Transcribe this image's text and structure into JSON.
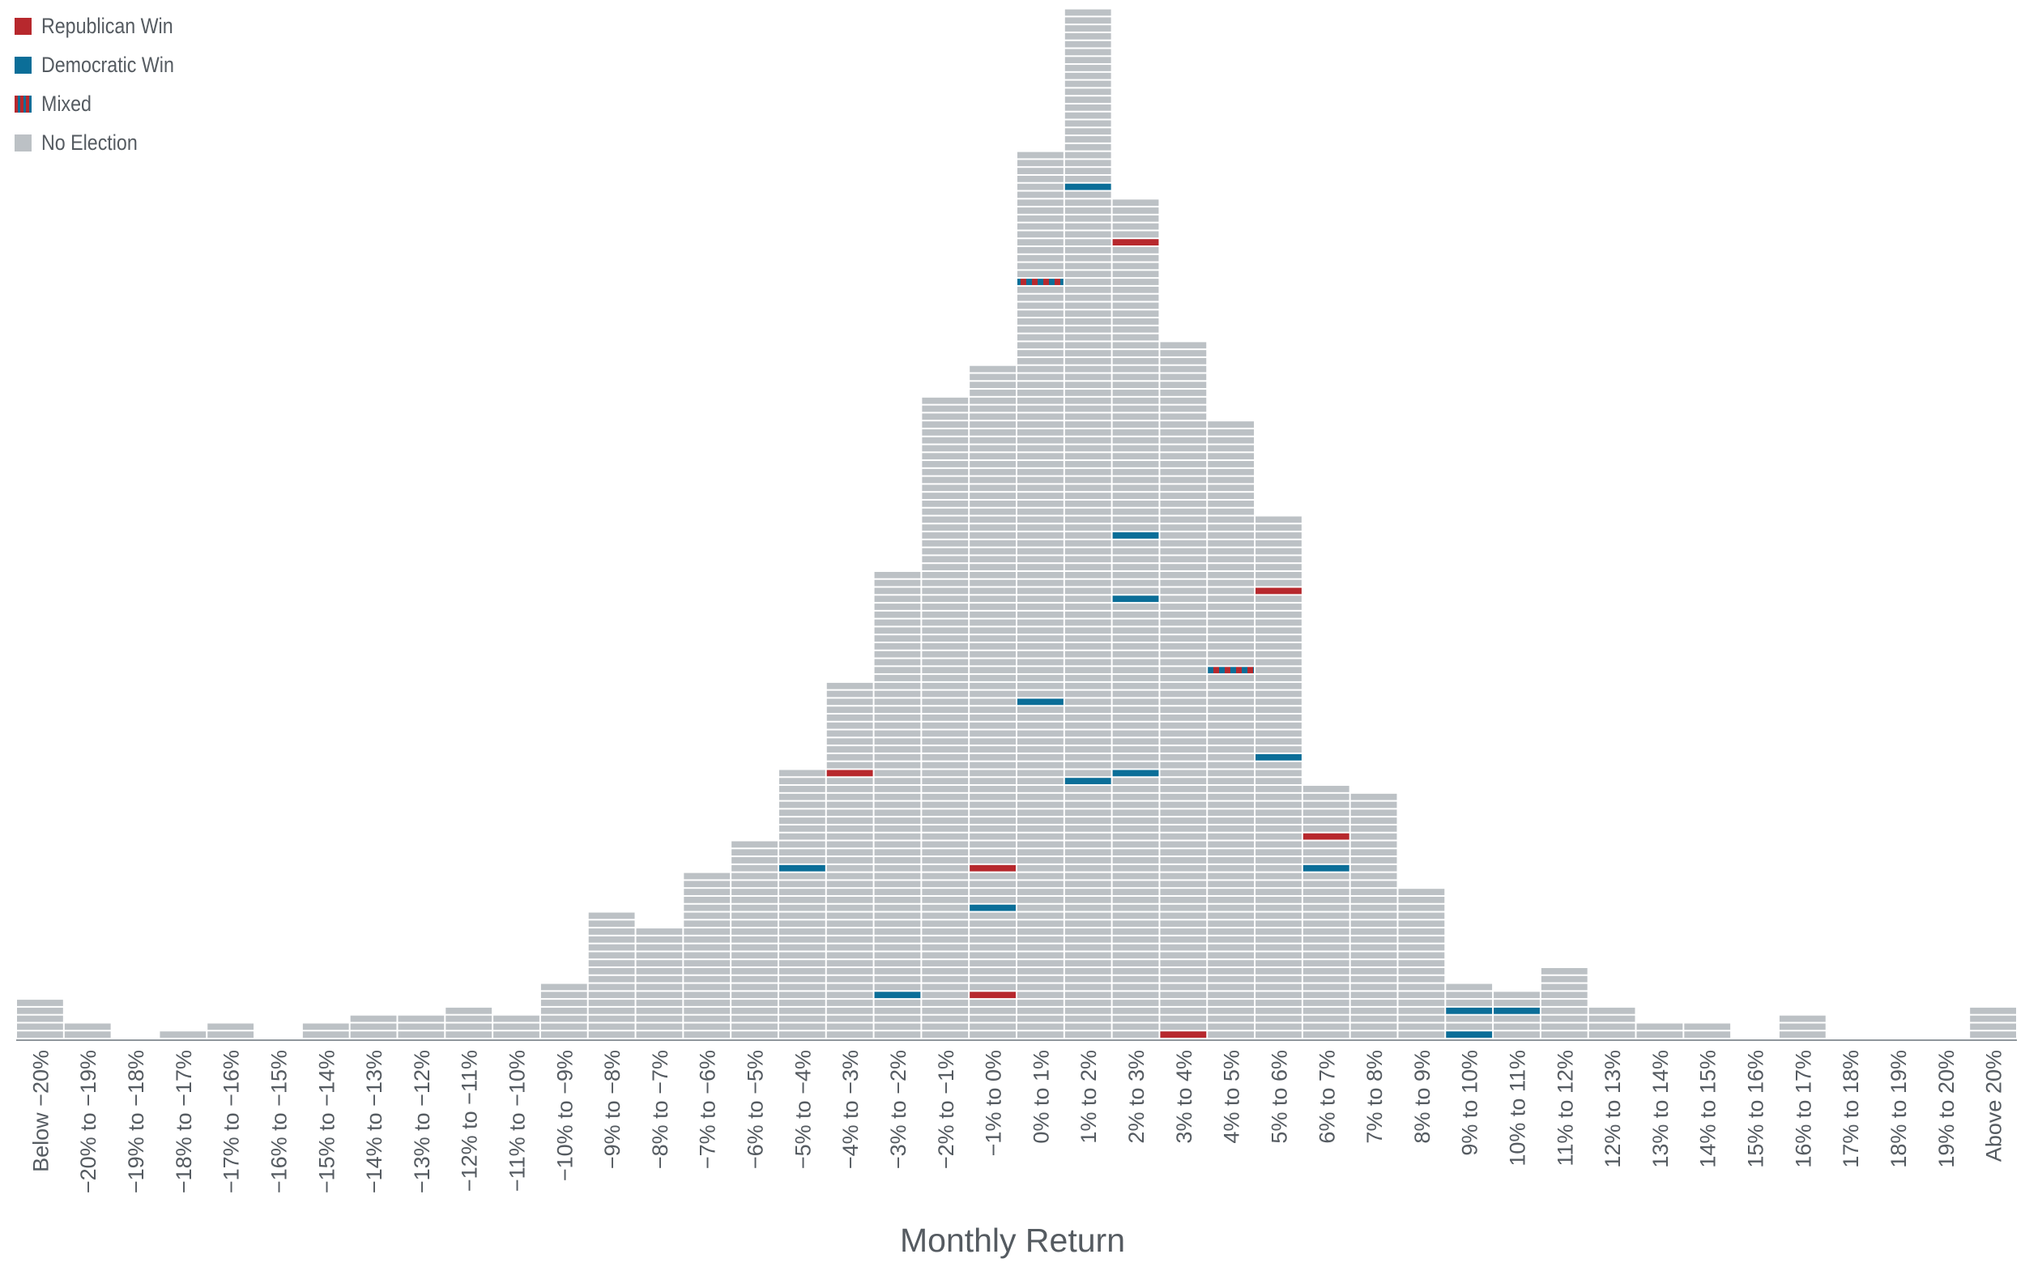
{
  "colors": {
    "republican": "#b7282d",
    "democratic": "#0b6e98",
    "no_election": "#bcc1c5",
    "axis": "#8f969c",
    "text": "#555b61"
  },
  "legend": [
    {
      "label": "Republican Win",
      "color": "#b7282d",
      "pattern": "solid"
    },
    {
      "label": "Democratic Win",
      "color": "#0b6e98",
      "pattern": "solid"
    },
    {
      "label": "Mixed",
      "color": "#b7282d",
      "pattern": "mixed"
    },
    {
      "label": "No Election",
      "color": "#bcc1c5",
      "pattern": "solid"
    }
  ],
  "chart_data": {
    "type": "bar",
    "xlabel": "Monthly Return",
    "ylabel": "",
    "categories": [
      "Below −20%",
      "−20% to −19%",
      "−19% to −18%",
      "−18% to −17%",
      "−17% to −16%",
      "−16% to −15%",
      "−15% to −14%",
      "−14% to −13%",
      "−13% to −12%",
      "−12% to −11%",
      "−11% to −10%",
      "−10% to −9%",
      "−9% to −8%",
      "−8% to −7%",
      "−7% to −6%",
      "−6% to −5%",
      "−5% to −4%",
      "−4% to −3%",
      "−3% to −2%",
      "−2% to −1%",
      "−1% to 0%",
      "0% to 1%",
      "1% to 2%",
      "2% to 3%",
      "3% to 4%",
      "4% to 5%",
      "5% to 6%",
      "6% to 7%",
      "7% to 8%",
      "8% to 9%",
      "9% to 10%",
      "10% to 11%",
      "11% to 12%",
      "12% to 13%",
      "13% to 14%",
      "14% to 15%",
      "15% to 16%",
      "16% to 17%",
      "17% to 18%",
      "18% to 19%",
      "19% to 20%",
      "Above 20%"
    ],
    "values": [
      5,
      2,
      0,
      1,
      2,
      0,
      2,
      3,
      3,
      4,
      3,
      7,
      16,
      14,
      21,
      25,
      34,
      45,
      59,
      81,
      85,
      112,
      130,
      106,
      88,
      78,
      66,
      32,
      31,
      19,
      7,
      6,
      9,
      4,
      2,
      2,
      0,
      3,
      0,
      0,
      0,
      4
    ],
    "highlights": [
      {
        "category": "−5% to −4%",
        "row": 22,
        "type": "Democratic Win"
      },
      {
        "category": "−4% to −3%",
        "row": 34,
        "type": "Republican Win"
      },
      {
        "category": "−3% to −2%",
        "row": 6,
        "type": "Democratic Win"
      },
      {
        "category": "−1% to 0%",
        "row": 6,
        "type": "Republican Win"
      },
      {
        "category": "−1% to 0%",
        "row": 17,
        "type": "Democratic Win"
      },
      {
        "category": "−1% to 0%",
        "row": 22,
        "type": "Republican Win"
      },
      {
        "category": "0% to 1%",
        "row": 43,
        "type": "Democratic Win"
      },
      {
        "category": "0% to 1%",
        "row": 96,
        "type": "Mixed"
      },
      {
        "category": "1% to 2%",
        "row": 33,
        "type": "Democratic Win"
      },
      {
        "category": "1% to 2%",
        "row": 108,
        "type": "Democratic Win"
      },
      {
        "category": "2% to 3%",
        "row": 34,
        "type": "Democratic Win"
      },
      {
        "category": "2% to 3%",
        "row": 56,
        "type": "Democratic Win"
      },
      {
        "category": "2% to 3%",
        "row": 64,
        "type": "Democratic Win"
      },
      {
        "category": "2% to 3%",
        "row": 101,
        "type": "Republican Win"
      },
      {
        "category": "3% to 4%",
        "row": 1,
        "type": "Republican Win"
      },
      {
        "category": "4% to 5%",
        "row": 47,
        "type": "Mixed"
      },
      {
        "category": "5% to 6%",
        "row": 36,
        "type": "Democratic Win"
      },
      {
        "category": "5% to 6%",
        "row": 57,
        "type": "Republican Win"
      },
      {
        "category": "6% to 7%",
        "row": 22,
        "type": "Democratic Win"
      },
      {
        "category": "6% to 7%",
        "row": 26,
        "type": "Republican Win"
      },
      {
        "category": "9% to 10%",
        "row": 1,
        "type": "Democratic Win"
      },
      {
        "category": "9% to 10%",
        "row": 4,
        "type": "Democratic Win"
      },
      {
        "category": "10% to 11%",
        "row": 4,
        "type": "Democratic Win"
      }
    ],
    "grid": false
  }
}
